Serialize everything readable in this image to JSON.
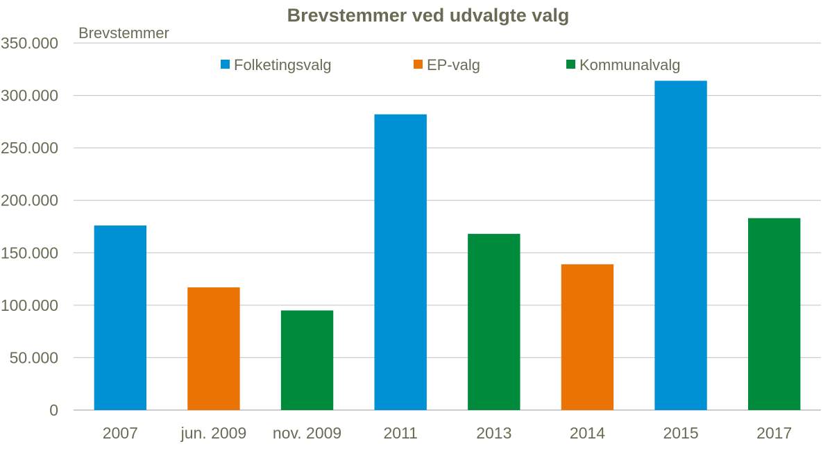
{
  "chart_data": {
    "type": "bar",
    "title": "Brevstemmer ved udvalgte valg",
    "ylabel": "Brevstemmer",
    "xlabel": "",
    "ylim": [
      0,
      350000
    ],
    "y_ticks": [
      0,
      50000,
      100000,
      150000,
      200000,
      250000,
      300000,
      350000
    ],
    "y_tick_labels": [
      "0",
      "50.000",
      "100.000",
      "150.000",
      "200.000",
      "250.000",
      "300.000",
      "350.000"
    ],
    "categories": [
      "2007",
      "jun. 2009",
      "nov. 2009",
      "2011",
      "2013",
      "2014",
      "2015",
      "2017"
    ],
    "values": [
      176000,
      117000,
      95000,
      282000,
      168000,
      139000,
      314000,
      183000
    ],
    "bar_series": [
      "Folketingsvalg",
      "EP-valg",
      "Kommunalvalg",
      "Folketingsvalg",
      "Kommunalvalg",
      "EP-valg",
      "Folketingsvalg",
      "Kommunalvalg"
    ],
    "series": [
      {
        "name": "Folketingsvalg",
        "color": "#0091d5"
      },
      {
        "name": "EP-valg",
        "color": "#eb7306"
      },
      {
        "name": "Kommunalvalg",
        "color": "#008a3c"
      }
    ],
    "grid": true,
    "legend_position": "top"
  }
}
